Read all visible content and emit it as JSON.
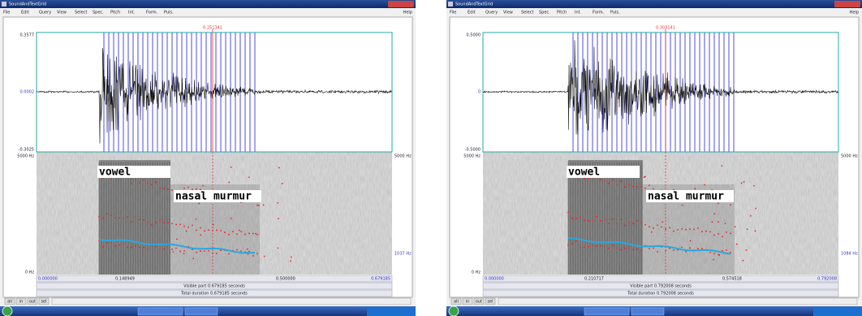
{
  "windows": [
    {
      "title": "SoundAndTextGrid",
      "menu": [
        "File",
        "Edit",
        "Query",
        "View",
        "Select",
        "Spec.",
        "Pitch",
        "Int.",
        "Form.",
        "Puls."
      ],
      "help": "Help",
      "wave_top": "0.3577",
      "wave_mid": "0.0002",
      "wave_bottom": "-0.3025",
      "cursor": "0.251341",
      "spec_top": "5000 Hz",
      "spec_bottom": "0 Hz",
      "spec_right_top": "5000 Hz",
      "spec_right_low": "1037 Hz",
      "annotations": [
        "vowel",
        "nasal murmur"
      ],
      "time_left": "0.000000",
      "time_mid1": "0.148949",
      "time_mid2": "0.500000",
      "time_right": "0.679185",
      "visible": "Visible part 0.679185 seconds",
      "total": "Total duration 0.679185 seconds",
      "buttons": [
        "all",
        "in",
        "out",
        "sel"
      ]
    },
    {
      "title": "SoundAndTextGrid",
      "menu": [
        "File",
        "Edit",
        "Query",
        "View",
        "Select",
        "Spec.",
        "Pitch",
        "Int.",
        "Form.",
        "Puls."
      ],
      "help": "Help",
      "wave_top": "0.5000",
      "wave_mid": "0",
      "wave_bottom": "-0.5000",
      "cursor": "0.303141",
      "spec_top": "5000 Hz",
      "spec_bottom": "0 Hz",
      "spec_right_top": "5000 Hz",
      "spec_right_low": "1084 Hz",
      "annotations": [
        "vowel",
        "nasal murmur"
      ],
      "time_left": "0.000000",
      "time_mid1": "0.210717",
      "time_mid2": "0.574518",
      "time_right": "0.792008",
      "visible": "Visible part 0.792008 seconds",
      "total": "Total duration 0.792008 seconds",
      "buttons": [
        "all",
        "in",
        "out",
        "sel"
      ]
    }
  ]
}
